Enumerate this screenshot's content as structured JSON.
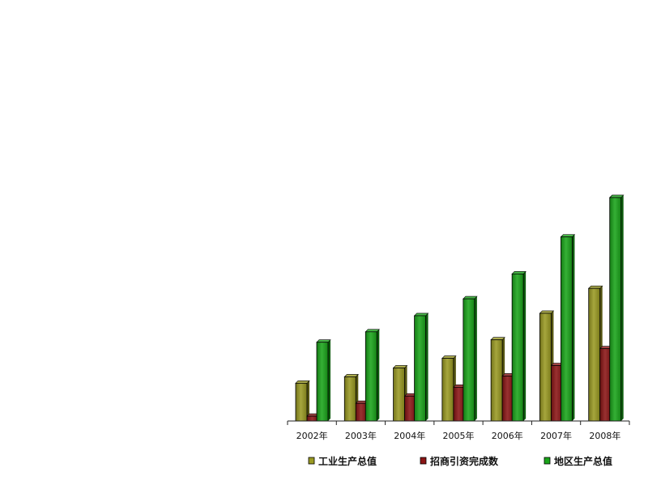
{
  "chart_data": {
    "type": "bar",
    "categories": [
      "2002年",
      "2003年",
      "2004年",
      "2005年",
      "2006年",
      "2007年",
      "2008年"
    ],
    "series": [
      {
        "name": "工业生产总值",
        "color": "#9a9a22",
        "values": [
          47,
          55,
          66,
          78,
          101,
          134,
          165
        ]
      },
      {
        "name": "招商引资完成数",
        "color": "#8b1515",
        "values": [
          6,
          22,
          31,
          42,
          56,
          69,
          90
        ]
      },
      {
        "name": "地区生产总值",
        "color": "#1aa51a",
        "values": [
          98,
          111,
          131,
          152,
          183,
          229,
          278
        ]
      }
    ],
    "ylim": [
      0,
      280
    ],
    "grid": false,
    "legend_position": "bottom"
  }
}
